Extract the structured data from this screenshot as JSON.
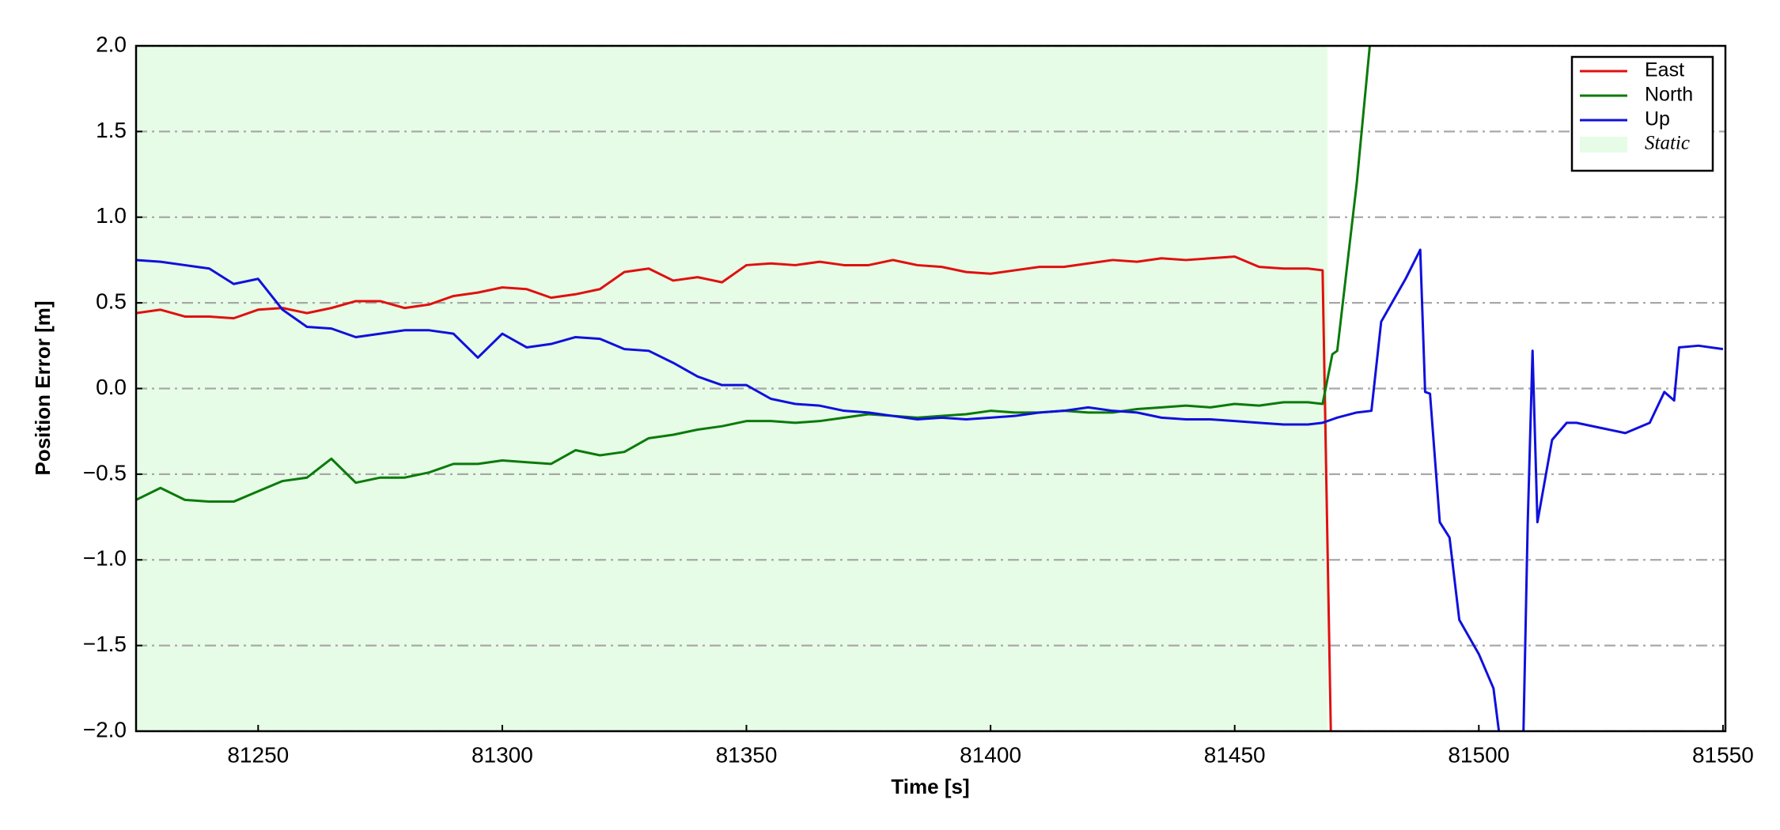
{
  "chart_data": {
    "type": "line",
    "xlabel": "Time [s]",
    "ylabel": "Position Error [m]",
    "xlim": [
      81225,
      81550.5
    ],
    "ylim": [
      -2,
      2
    ],
    "xticks": [
      81250,
      81300,
      81350,
      81400,
      81450,
      81500,
      81550
    ],
    "yticks": [
      {
        "value": -2,
        "label": "−2.0"
      },
      {
        "value": -1.5,
        "label": "−1.5"
      },
      {
        "value": -1,
        "label": "−1.0"
      },
      {
        "value": -0.5,
        "label": "−0.5"
      },
      {
        "value": 0,
        "label": "0.0"
      },
      {
        "value": 0.5,
        "label": "0.5"
      },
      {
        "value": 1,
        "label": "1.0"
      },
      {
        "value": 1.5,
        "label": "1.5"
      },
      {
        "value": 2,
        "label": "2.0"
      }
    ],
    "grid": true,
    "legend": "upper right",
    "shaded_region": {
      "name": "Static",
      "xrange": [
        81225,
        81469
      ],
      "color": "#e6fce6"
    },
    "x": [
      81225,
      81230,
      81235,
      81240,
      81245,
      81250,
      81255,
      81260,
      81265,
      81270,
      81275,
      81280,
      81285,
      81290,
      81295,
      81300,
      81305,
      81310,
      81315,
      81320,
      81325,
      81330,
      81335,
      81340,
      81345,
      81350,
      81355,
      81360,
      81365,
      81370,
      81375,
      81380,
      81385,
      81390,
      81395,
      81400,
      81405,
      81410,
      81415,
      81420,
      81425,
      81430,
      81435,
      81440,
      81445,
      81450,
      81455,
      81460,
      81465,
      81468,
      81470,
      81471,
      81475,
      81478,
      81480,
      81485,
      81488,
      81489,
      81490,
      81492,
      81494,
      81496,
      81497,
      81500,
      81503,
      81505,
      81507,
      81509,
      81510,
      81511,
      81512,
      81515,
      81518,
      81520,
      81525,
      81530,
      81535,
      81538,
      81540,
      81541,
      81545,
      81550
    ],
    "series": [
      {
        "name": "East",
        "color": "#e01010",
        "values": [
          0.44,
          0.46,
          0.42,
          0.42,
          0.41,
          0.46,
          0.47,
          0.44,
          0.47,
          0.51,
          0.51,
          0.47,
          0.49,
          0.54,
          0.56,
          0.59,
          0.58,
          0.53,
          0.55,
          0.58,
          0.68,
          0.7,
          0.63,
          0.65,
          0.62,
          0.72,
          0.73,
          0.72,
          0.74,
          0.72,
          0.72,
          0.75,
          0.72,
          0.71,
          0.68,
          0.67,
          0.69,
          0.71,
          0.71,
          0.73,
          0.75,
          0.74,
          0.76,
          0.75,
          0.76,
          0.77,
          0.71,
          0.7,
          0.7,
          0.69,
          -2.5,
          null,
          null,
          null,
          null,
          null,
          null,
          null,
          null,
          null,
          null,
          null,
          null,
          null,
          null,
          null,
          null,
          null,
          null,
          null,
          null,
          null,
          null,
          null,
          null,
          null,
          null,
          null,
          null,
          null,
          null,
          null
        ]
      },
      {
        "name": "North",
        "color": "#0b7a0b",
        "values": [
          -0.65,
          -0.58,
          -0.65,
          -0.66,
          -0.66,
          -0.6,
          -0.54,
          -0.52,
          -0.41,
          -0.55,
          -0.52,
          -0.52,
          -0.49,
          -0.44,
          -0.44,
          -0.42,
          -0.43,
          -0.44,
          -0.36,
          -0.39,
          -0.37,
          -0.29,
          -0.27,
          -0.24,
          -0.22,
          -0.19,
          -0.19,
          -0.2,
          -0.19,
          -0.17,
          -0.15,
          -0.16,
          -0.17,
          -0.16,
          -0.15,
          -0.13,
          -0.14,
          -0.14,
          -0.13,
          -0.14,
          -0.14,
          -0.12,
          -0.11,
          -0.1,
          -0.11,
          -0.09,
          -0.1,
          -0.08,
          -0.08,
          -0.09,
          0.2,
          0.22,
          1.2,
          2.1,
          null,
          null,
          null,
          null,
          null,
          null,
          null,
          null,
          null,
          null,
          null,
          null,
          null,
          null,
          null,
          null,
          null,
          null,
          null,
          null,
          null,
          null,
          null,
          null,
          null,
          null,
          null,
          null
        ]
      },
      {
        "name": "Up",
        "color": "#1010dd",
        "values": [
          0.75,
          0.74,
          0.72,
          0.7,
          0.61,
          0.64,
          0.46,
          0.36,
          0.35,
          0.3,
          0.32,
          0.34,
          0.34,
          0.32,
          0.18,
          0.32,
          0.24,
          0.26,
          0.3,
          0.29,
          0.23,
          0.22,
          0.15,
          0.07,
          0.02,
          0.02,
          -0.06,
          -0.09,
          -0.1,
          -0.13,
          -0.14,
          -0.16,
          -0.18,
          -0.17,
          -0.18,
          -0.17,
          -0.16,
          -0.14,
          -0.13,
          -0.11,
          -0.13,
          -0.14,
          -0.17,
          -0.18,
          -0.18,
          -0.19,
          -0.2,
          -0.21,
          -0.21,
          -0.2,
          -0.18,
          -0.17,
          -0.14,
          -0.13,
          0.39,
          0.64,
          0.81,
          -0.02,
          -0.03,
          -0.78,
          -0.87,
          -1.35,
          -1.4,
          -1.55,
          -1.75,
          -2.2,
          -2.6,
          -2.2,
          -0.8,
          0.22,
          -0.78,
          -0.3,
          -0.2,
          -0.2,
          -0.23,
          -0.26,
          -0.2,
          -0.02,
          -0.07,
          0.24,
          0.25,
          0.23
        ]
      }
    ]
  }
}
